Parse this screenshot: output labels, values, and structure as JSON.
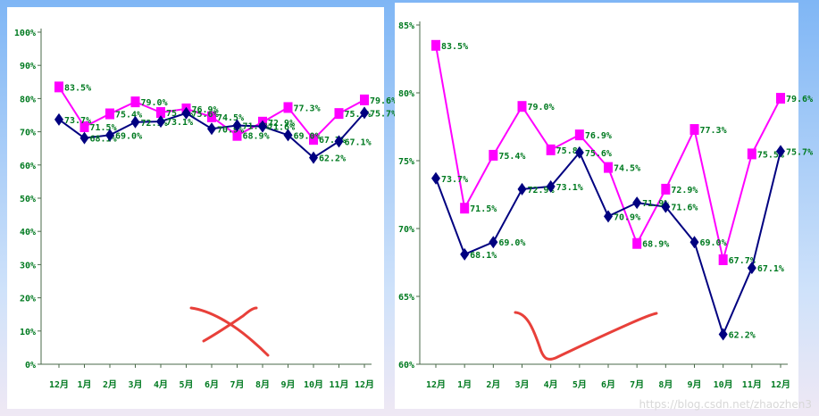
{
  "chart_data": [
    {
      "type": "line",
      "categories": [
        "12月",
        "1月",
        "2月",
        "3月",
        "4月",
        "5月",
        "6月",
        "7月",
        "8月",
        "9月",
        "10月",
        "11月",
        "12月"
      ],
      "ylim": [
        0,
        100
      ],
      "yticks": [
        "0%",
        "10%",
        "20%",
        "30%",
        "40%",
        "50%",
        "60%",
        "70%",
        "80%",
        "90%",
        "100%"
      ],
      "grid": false,
      "series": [
        {
          "color": "#ff00ff",
          "marker": "square",
          "values": [
            83.5,
            71.5,
            75.4,
            79.0,
            75.8,
            76.9,
            74.5,
            68.9,
            72.9,
            77.3,
            67.7,
            75.5,
            79.6
          ],
          "labels": [
            "83.5%",
            "71.5%",
            "75.4%",
            "79.0%",
            "75.8%",
            "76.9%",
            "74.5%",
            "68.9%",
            "72.9%",
            "77.3%",
            "67.7%",
            "75.5%",
            "79.6%"
          ]
        },
        {
          "color": "#000080",
          "marker": "diamond",
          "values": [
            73.7,
            68.1,
            69.0,
            72.9,
            73.1,
            75.6,
            70.9,
            71.9,
            71.6,
            69.0,
            62.2,
            67.1,
            75.7
          ],
          "labels": [
            "73.7%",
            "68.1%",
            "69.0%",
            "72.9%",
            "73.1%",
            "75.6%",
            "70.9%",
            "71.9%",
            "71.6%",
            "69.0%",
            "62.2%",
            "67.1%",
            "75.7%"
          ]
        }
      ]
    },
    {
      "type": "line",
      "categories": [
        "12月",
        "1月",
        "2月",
        "3月",
        "4月",
        "5月",
        "6月",
        "7月",
        "8月",
        "9月",
        "10月",
        "11月",
        "12月"
      ],
      "ylim": [
        60,
        85
      ],
      "yticks": [
        "60%",
        "65%",
        "70%",
        "75%",
        "80%",
        "85%"
      ],
      "grid": false,
      "series": [
        {
          "color": "#ff00ff",
          "marker": "square",
          "values": [
            83.5,
            71.5,
            75.4,
            79.0,
            75.8,
            76.9,
            74.5,
            68.9,
            72.9,
            77.3,
            67.7,
            75.5,
            79.6
          ],
          "labels": [
            "83.5%",
            "71.5%",
            "75.4%",
            "79.0%",
            "75.8%",
            "76.9%",
            "74.5%",
            "68.9%",
            "72.9%",
            "77.3%",
            "67.7%",
            "75.5%",
            "79.6%"
          ]
        },
        {
          "color": "#000080",
          "marker": "diamond",
          "values": [
            73.7,
            68.1,
            69.0,
            72.9,
            73.1,
            75.6,
            70.9,
            71.9,
            71.6,
            69.0,
            62.2,
            67.1,
            75.7
          ],
          "labels": [
            "73.7%",
            "68.1%",
            "69.0%",
            "72.9%",
            "73.1%",
            "75.6%",
            "70.9%",
            "71.9%",
            "71.6%",
            "69.0%",
            "62.2%",
            "67.1%",
            "75.7%"
          ]
        }
      ]
    }
  ],
  "colors": {
    "tick_text": "#007a20",
    "axis": "#4a6a4a",
    "annotation": "#e8403a"
  },
  "watermark": "https://blog.csdn.net/zhaozhen3"
}
